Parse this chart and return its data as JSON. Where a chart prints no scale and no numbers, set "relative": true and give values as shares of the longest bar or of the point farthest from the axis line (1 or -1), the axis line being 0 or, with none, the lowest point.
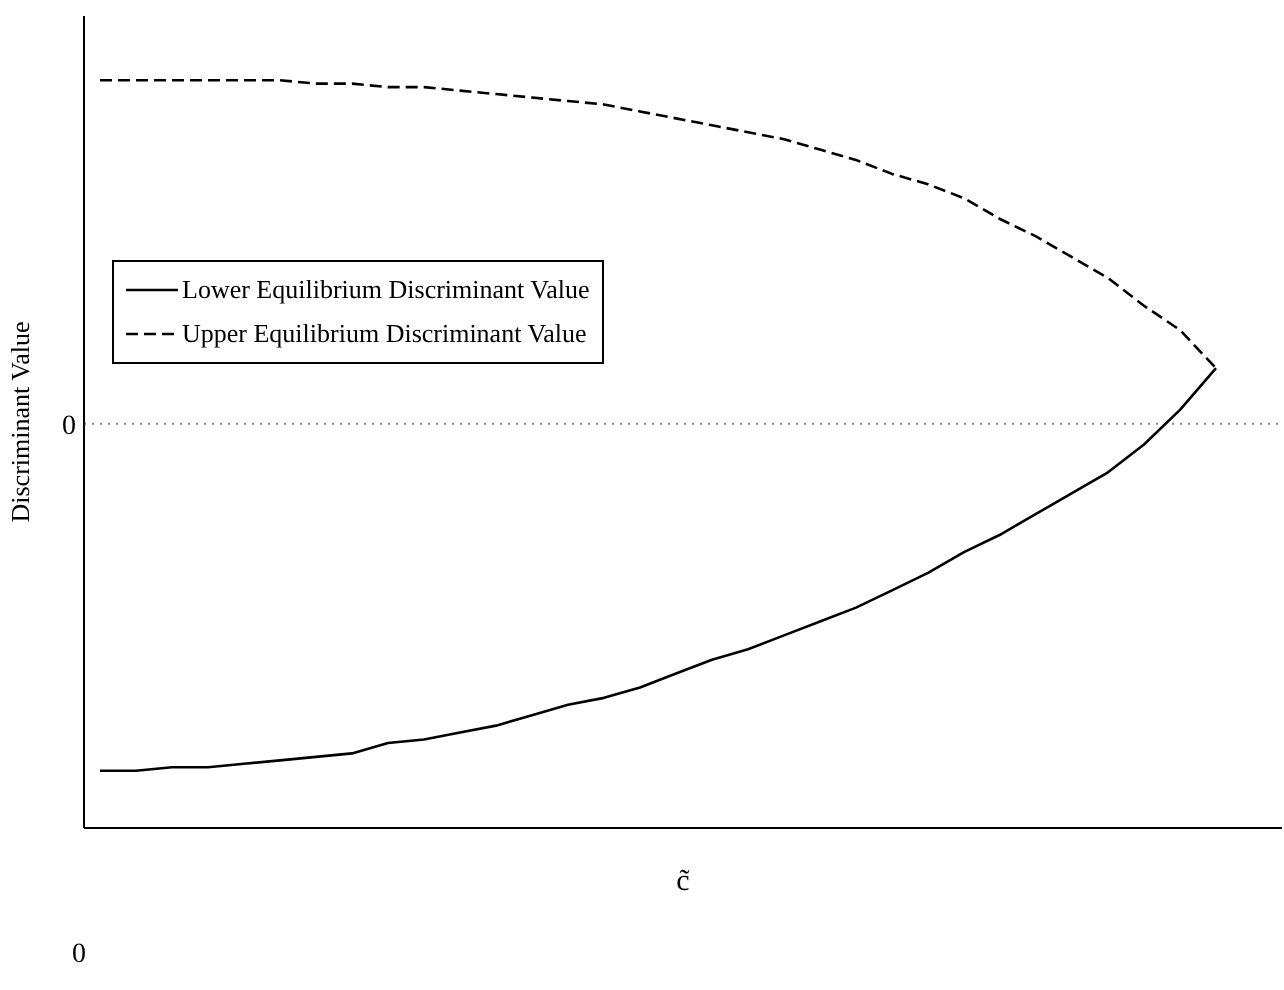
{
  "chart_data": {
    "type": "line",
    "relative": true,
    "xlabel": "c̃",
    "ylabel": "Discriminant Value",
    "legend": "top left",
    "grid": false,
    "marker": "none",
    "categories": [
      null,
      null,
      null,
      null,
      null,
      null,
      null,
      null,
      null,
      null,
      null,
      null,
      null,
      null,
      null,
      null,
      null,
      null,
      null,
      null,
      null,
      null,
      null,
      null,
      null,
      null,
      null,
      null,
      null,
      null,
      null,
      null
    ],
    "series": [
      {
        "name": "Lower Equilibrium Discriminant Value",
        "color": "#000000",
        "line_style": "solid",
        "values": [
          -1,
          -1,
          -0.99,
          -0.99,
          -0.98,
          -0.97,
          -0.96,
          -0.95,
          -0.92,
          -0.91,
          -0.89,
          -0.87,
          -0.84,
          -0.81,
          -0.79,
          -0.76,
          -0.72,
          -0.68,
          -0.65,
          -0.61,
          -0.57,
          -0.53,
          -0.48,
          -0.43,
          -0.37,
          -0.32,
          -0.26,
          -0.2,
          -0.14,
          -0.06,
          0.04,
          0.16
        ]
      },
      {
        "name": "Upper Equilibrium Discriminant Value",
        "color": "#000000",
        "line_style": "dashed",
        "values": [
          0.99,
          0.99,
          0.99,
          0.99,
          0.99,
          0.99,
          0.98,
          0.98,
          0.97,
          0.97,
          0.96,
          0.95,
          0.94,
          0.93,
          0.92,
          0.9,
          0.88,
          0.86,
          0.84,
          0.82,
          0.79,
          0.76,
          0.72,
          0.69,
          0.65,
          0.59,
          0.54,
          0.48,
          0.42,
          0.34,
          0.27,
          0.16
        ]
      }
    ],
    "ref_lines": [
      {
        "axis": "y",
        "value": 0,
        "label": "0",
        "color": "#888888",
        "line_style": "dotted"
      }
    ],
    "annotations": [
      "0"
    ]
  }
}
